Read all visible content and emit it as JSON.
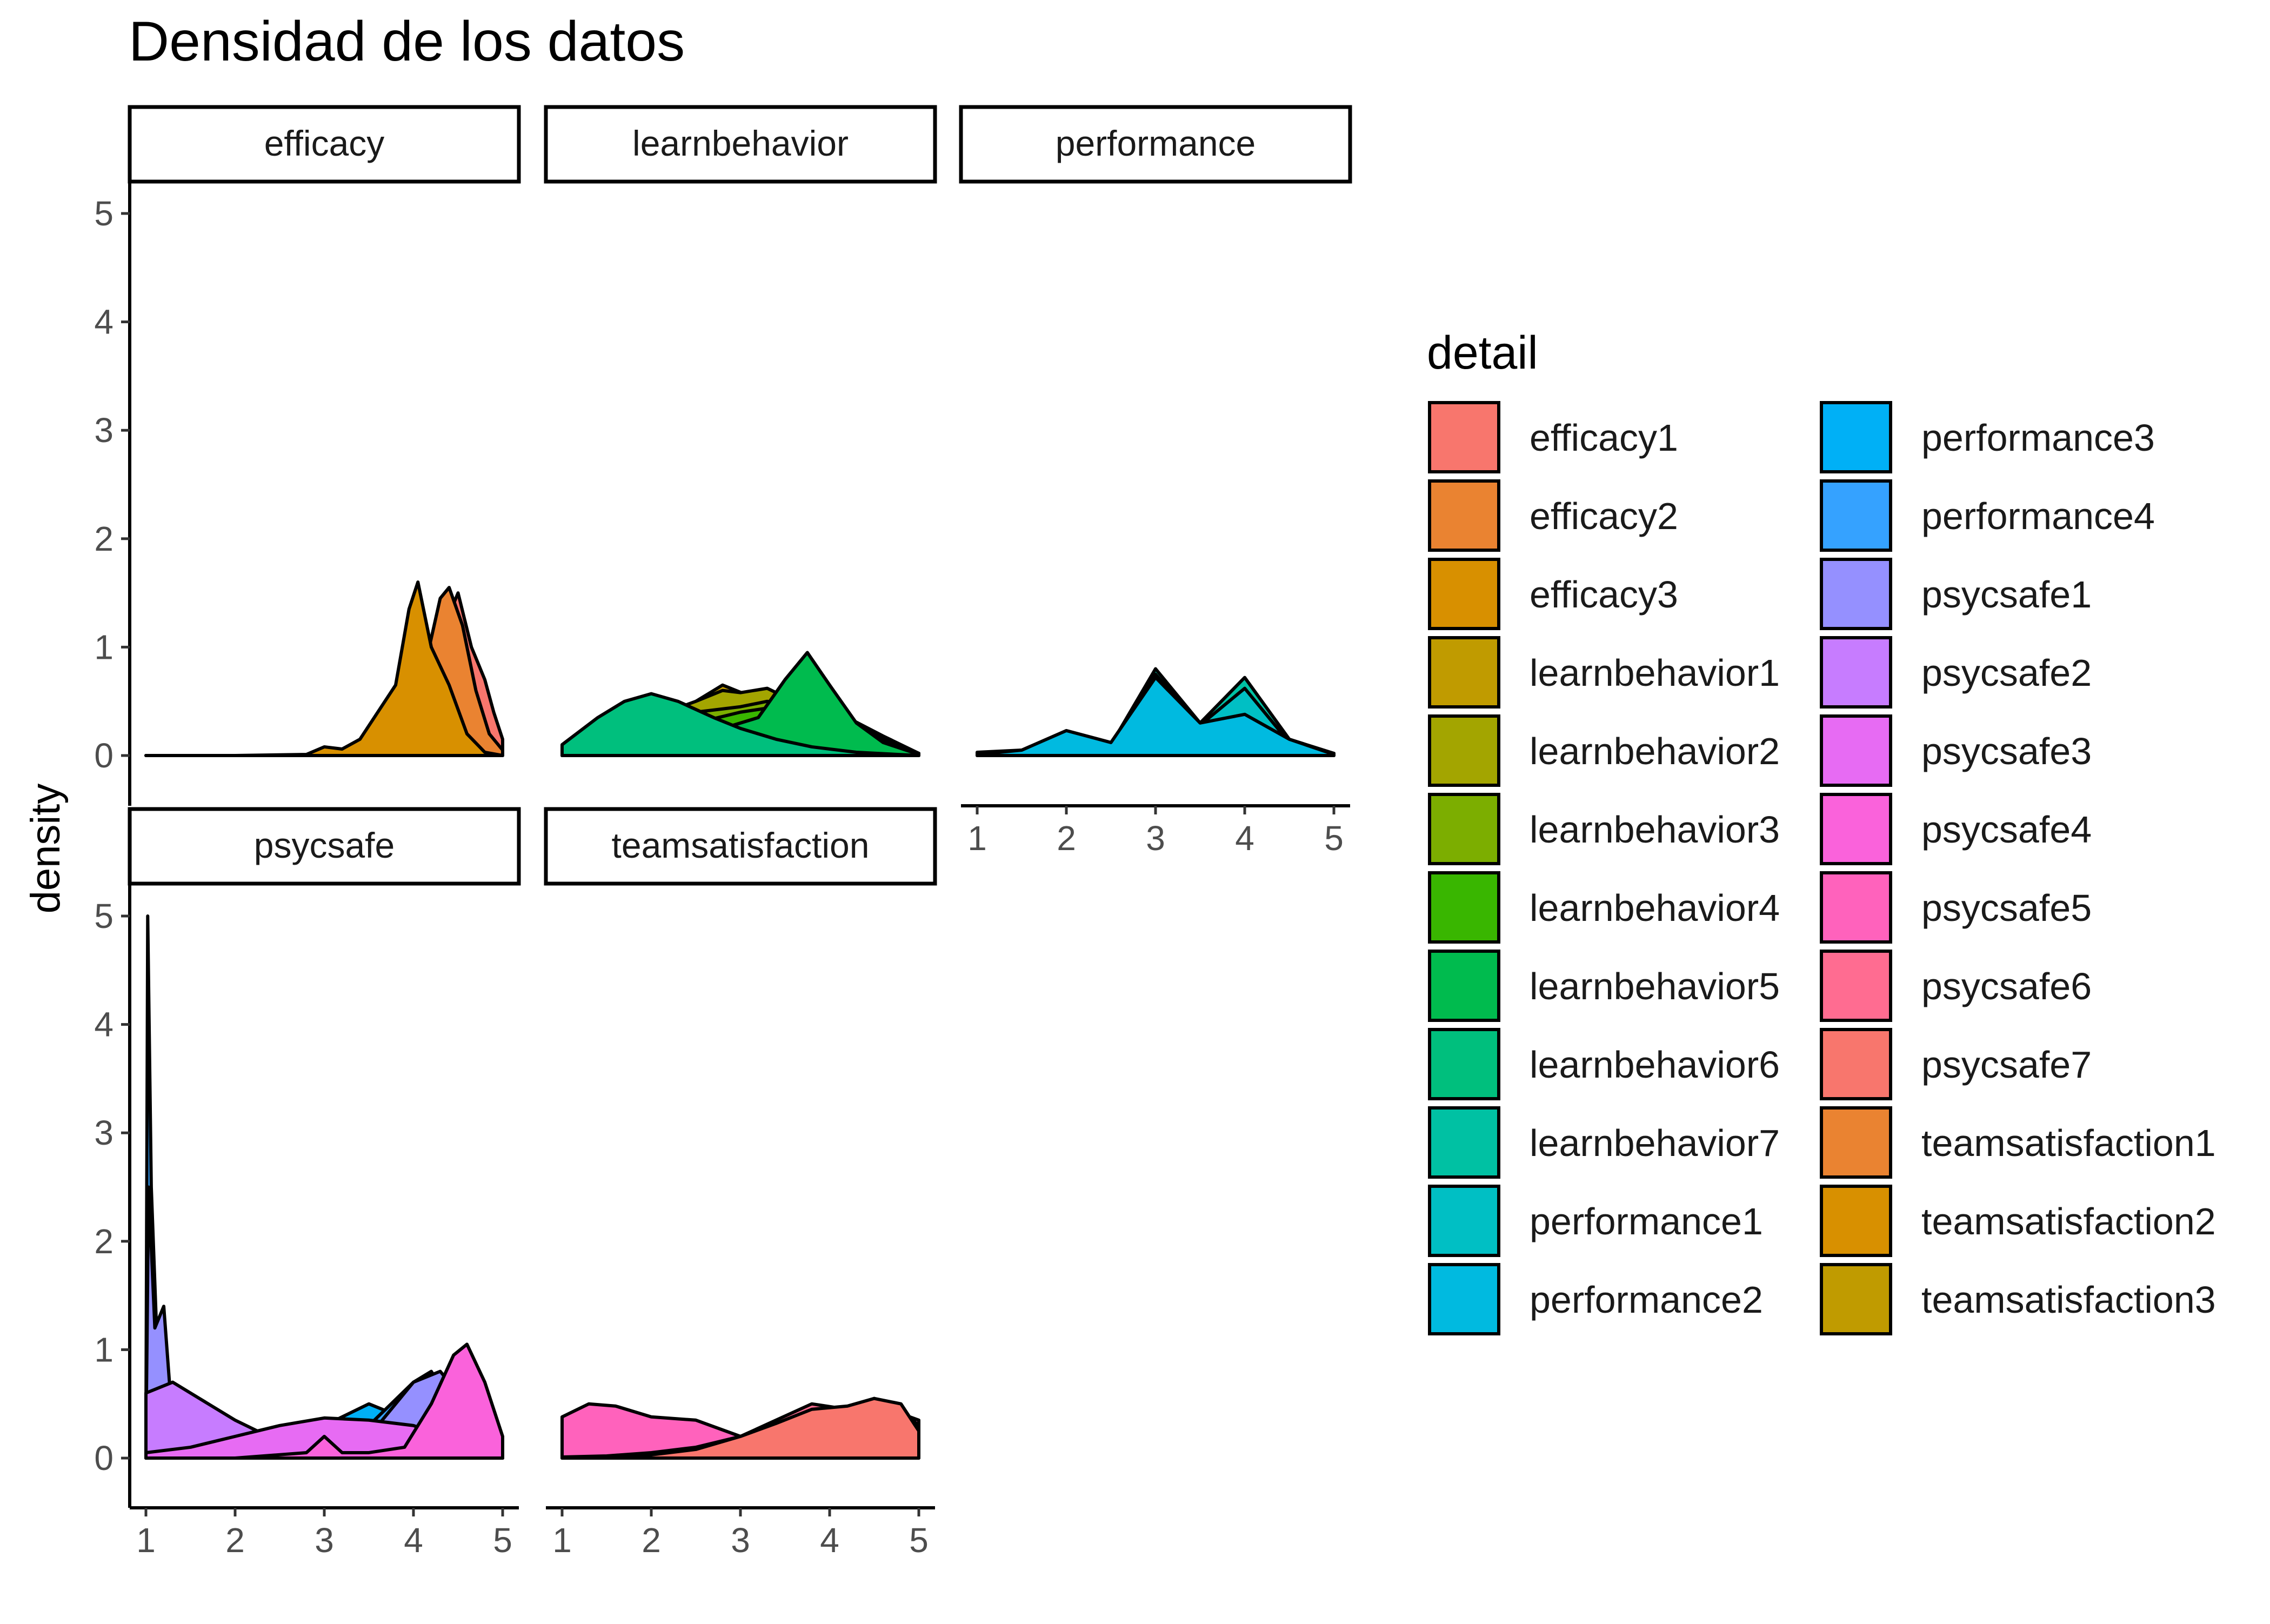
{
  "chart_data": {
    "type": "area",
    "title": "Densidad de los datos",
    "ylabel": "density",
    "xlabel": "",
    "xlim": [
      1,
      5
    ],
    "ylim": [
      0,
      5
    ],
    "x_ticks": [
      1,
      2,
      3,
      4,
      5
    ],
    "y_ticks": [
      0,
      1,
      2,
      3,
      4,
      5
    ],
    "grid": false,
    "legend": {
      "title": "detail",
      "placement": "right",
      "columns": 2,
      "entries": [
        {
          "name": "efficacy1",
          "color": "#F8766D"
        },
        {
          "name": "efficacy2",
          "color": "#EA8331"
        },
        {
          "name": "efficacy3",
          "color": "#D89000"
        },
        {
          "name": "learnbehavior1",
          "color": "#C09B00"
        },
        {
          "name": "learnbehavior2",
          "color": "#A3A500"
        },
        {
          "name": "learnbehavior3",
          "color": "#7CAE00"
        },
        {
          "name": "learnbehavior4",
          "color": "#39B600"
        },
        {
          "name": "learnbehavior5",
          "color": "#00BB4E"
        },
        {
          "name": "learnbehavior6",
          "color": "#00BF7D"
        },
        {
          "name": "learnbehavior7",
          "color": "#00C1A3"
        },
        {
          "name": "performance1",
          "color": "#00BFC4"
        },
        {
          "name": "performance2",
          "color": "#00BAE0"
        },
        {
          "name": "performance3",
          "color": "#00B0F6"
        },
        {
          "name": "performance4",
          "color": "#35A2FF"
        },
        {
          "name": "psycsafe1",
          "color": "#9590FF"
        },
        {
          "name": "psycsafe2",
          "color": "#C77CFF"
        },
        {
          "name": "psycsafe3",
          "color": "#E76BF3"
        },
        {
          "name": "psycsafe4",
          "color": "#FA62DB"
        },
        {
          "name": "psycsafe5",
          "color": "#FF62BC"
        },
        {
          "name": "psycsafe6",
          "color": "#FF6C91"
        },
        {
          "name": "psycsafe7",
          "color": "#F8766D"
        },
        {
          "name": "teamsatisfaction1",
          "color": "#EA8331"
        },
        {
          "name": "teamsatisfaction2",
          "color": "#D89000"
        },
        {
          "name": "teamsatisfaction3",
          "color": "#C09B00"
        }
      ]
    },
    "facets": [
      {
        "label": "efficacy",
        "series": [
          {
            "name": "efficacy1",
            "color": "#F8766D",
            "x": [
              1,
              2,
              2.8,
              3.3,
              3.6,
              3.9,
              4.1,
              4.2,
              4.35,
              4.5,
              4.65,
              4.8,
              4.9,
              5
            ],
            "y": [
              0,
              0,
              0,
              0.02,
              0.05,
              0.15,
              0.55,
              0.85,
              1.2,
              1.5,
              1.0,
              0.7,
              0.4,
              0.15
            ]
          },
          {
            "name": "efficacy2",
            "color": "#EA8331",
            "x": [
              1,
              2,
              2.9,
              3.3,
              3.6,
              3.85,
              4.0,
              4.15,
              4.3,
              4.4,
              4.55,
              4.7,
              4.85,
              5
            ],
            "y": [
              0,
              0,
              0,
              0.05,
              0.12,
              0.3,
              0.5,
              0.9,
              1.45,
              1.55,
              1.2,
              0.6,
              0.2,
              0.05
            ]
          },
          {
            "name": "efficacy3",
            "color": "#D89000",
            "x": [
              1,
              2,
              2.8,
              3.0,
              3.2,
              3.4,
              3.6,
              3.8,
              3.95,
              4.05,
              4.2,
              4.4,
              4.6,
              4.8,
              5
            ],
            "y": [
              0,
              0,
              0.01,
              0.08,
              0.06,
              0.15,
              0.4,
              0.65,
              1.35,
              1.6,
              1.0,
              0.65,
              0.2,
              0.03,
              0
            ]
          }
        ]
      },
      {
        "label": "learnbehavior",
        "series": [
          {
            "name": "learnbehavior1",
            "color": "#C09B00",
            "x": [
              1,
              1.5,
              2,
              2.4,
              2.8,
              3.1,
              3.5,
              4.0,
              4.5,
              5
            ],
            "y": [
              0.05,
              0.2,
              0.35,
              0.45,
              0.65,
              0.55,
              0.55,
              0.4,
              0.2,
              0.02
            ]
          },
          {
            "name": "learnbehavior2",
            "color": "#A3A500",
            "x": [
              1,
              1.5,
              2,
              2.5,
              2.8,
              3.0,
              3.3,
              3.6,
              4.0,
              4.5,
              5
            ],
            "y": [
              0.05,
              0.2,
              0.35,
              0.5,
              0.6,
              0.58,
              0.62,
              0.5,
              0.38,
              0.2,
              0.02
            ]
          },
          {
            "name": "learnbehavior3",
            "color": "#7CAE00",
            "x": [
              1,
              1.5,
              2,
              2.5,
              3.0,
              3.3,
              3.7,
              4.2,
              4.6,
              5
            ],
            "y": [
              0.04,
              0.18,
              0.3,
              0.4,
              0.45,
              0.5,
              0.45,
              0.35,
              0.18,
              0.02
            ]
          },
          {
            "name": "learnbehavior4",
            "color": "#39B600",
            "x": [
              1,
              1.5,
              2,
              2.5,
              3.0,
              3.4,
              3.8,
              4.2,
              4.6,
              5
            ],
            "y": [
              0.03,
              0.15,
              0.25,
              0.3,
              0.4,
              0.45,
              0.5,
              0.35,
              0.15,
              0.02
            ]
          },
          {
            "name": "learnbehavior5",
            "color": "#00BB4E",
            "x": [
              1,
              1.6,
              2.2,
              2.8,
              3.2,
              3.5,
              3.75,
              4.0,
              4.3,
              4.6,
              5
            ],
            "y": [
              0.02,
              0.1,
              0.15,
              0.25,
              0.35,
              0.7,
              0.95,
              0.65,
              0.3,
              0.12,
              0.01
            ]
          },
          {
            "name": "learnbehavior6",
            "color": "#00BF7D",
            "x": [
              1,
              1.4,
              1.7,
              2.0,
              2.3,
              2.7,
              3.0,
              3.4,
              3.8,
              4.3,
              5
            ],
            "y": [
              0.1,
              0.35,
              0.5,
              0.57,
              0.5,
              0.35,
              0.25,
              0.15,
              0.08,
              0.03,
              0
            ]
          }
        ]
      },
      {
        "label": "performance",
        "series": [
          {
            "name": "performance1",
            "color": "#00C1A3",
            "x": [
              1,
              1.5,
              2,
              2.5,
              3,
              3.5,
              4,
              4.5,
              5
            ],
            "y": [
              0.03,
              0.05,
              0.22,
              0.1,
              0.8,
              0.3,
              0.72,
              0.15,
              0.02
            ]
          },
          {
            "name": "performance2",
            "color": "#00BFC4",
            "x": [
              1,
              1.5,
              2,
              2.5,
              3,
              3.5,
              4,
              4.5,
              5
            ],
            "y": [
              0.02,
              0.04,
              0.2,
              0.1,
              0.75,
              0.28,
              0.62,
              0.12,
              0.02
            ]
          },
          {
            "name": "performance3",
            "color": "#00BAE0",
            "x": [
              1,
              1.5,
              2,
              2.5,
              3,
              3.5,
              4,
              4.5,
              5
            ],
            "y": [
              0.01,
              0.05,
              0.23,
              0.12,
              0.72,
              0.3,
              0.38,
              0.15,
              0.01
            ]
          }
        ]
      },
      {
        "label": "psycsafe",
        "series": [
          {
            "name": "psycsafe1",
            "color": "#00B0F6",
            "x": [
              1,
              1.02,
              1.08,
              1.2,
              1.3,
              1.5,
              2.0,
              2.5,
              3.0,
              3.5,
              3.8,
              4.1,
              4.5,
              5
            ],
            "y": [
              0.2,
              3.0,
              1.5,
              0.8,
              0.3,
              0.1,
              0.05,
              0.1,
              0.3,
              0.5,
              0.4,
              0.3,
              0.2,
              0.1
            ]
          },
          {
            "name": "psycsafe2",
            "color": "#35A2FF",
            "x": [
              1,
              1.02,
              1.06,
              1.15,
              1.25,
              1.4,
              2.0,
              2.5,
              3.0,
              3.5,
              4.0,
              4.2,
              4.5,
              5
            ],
            "y": [
              0.3,
              5.0,
              2.5,
              0.5,
              0.2,
              0.1,
              0.05,
              0.1,
              0.2,
              0.3,
              0.7,
              0.8,
              0.4,
              0.1
            ]
          },
          {
            "name": "psycsafe3",
            "color": "#9590FF",
            "x": [
              1,
              1.03,
              1.1,
              1.2,
              1.3,
              1.5,
              2.0,
              2.5,
              3.0,
              3.5,
              4.0,
              4.3,
              4.6,
              5
            ],
            "y": [
              0.1,
              2.5,
              1.2,
              1.4,
              0.3,
              0.1,
              0.05,
              0.05,
              0.1,
              0.2,
              0.7,
              0.8,
              0.5,
              0.1
            ]
          },
          {
            "name": "psycsafe4",
            "color": "#C77CFF",
            "x": [
              1,
              1.3,
              1.6,
              2.0,
              2.5,
              3.0,
              3.5,
              4.0,
              4.5,
              5
            ],
            "y": [
              0.6,
              0.7,
              0.55,
              0.35,
              0.15,
              0.05,
              0.02,
              0.02,
              0.01,
              0
            ]
          },
          {
            "name": "psycsafe5",
            "color": "#E76BF3",
            "x": [
              1,
              1.5,
              2.0,
              2.5,
              3.0,
              3.5,
              4.0,
              4.5,
              5
            ],
            "y": [
              0.05,
              0.1,
              0.2,
              0.3,
              0.37,
              0.35,
              0.3,
              0.15,
              0.05
            ]
          },
          {
            "name": "psycsafe6",
            "color": "#FA62DB",
            "x": [
              1,
              2.0,
              2.8,
              3.0,
              3.2,
              3.5,
              3.9,
              4.2,
              4.45,
              4.6,
              4.8,
              5
            ],
            "y": [
              0,
              0,
              0.05,
              0.2,
              0.05,
              0.05,
              0.1,
              0.5,
              0.95,
              1.05,
              0.7,
              0.2
            ]
          }
        ]
      },
      {
        "label": "teamsatisfaction",
        "series": [
          {
            "name": "teamsatisfaction1",
            "color": "#FF62BC",
            "x": [
              1,
              1.3,
              1.6,
              2.0,
              2.5,
              3.0,
              3.5,
              4.0,
              4.5,
              5
            ],
            "y": [
              0.38,
              0.5,
              0.48,
              0.38,
              0.35,
              0.2,
              0.35,
              0.45,
              0.5,
              0.35
            ]
          },
          {
            "name": "teamsatisfaction2",
            "color": "#FF6C91",
            "x": [
              1,
              1.5,
              2.0,
              2.5,
              3.0,
              3.4,
              3.8,
              4.2,
              4.5,
              4.8,
              5
            ],
            "y": [
              0.01,
              0.02,
              0.05,
              0.1,
              0.2,
              0.35,
              0.5,
              0.45,
              0.55,
              0.45,
              0.3
            ]
          },
          {
            "name": "teamsatisfaction3",
            "color": "#F8766D",
            "x": [
              1,
              1.5,
              2.0,
              2.5,
              3.0,
              3.4,
              3.8,
              4.2,
              4.5,
              4.8,
              5
            ],
            "y": [
              0,
              0.01,
              0.03,
              0.08,
              0.2,
              0.32,
              0.45,
              0.48,
              0.55,
              0.5,
              0.25
            ]
          }
        ]
      }
    ]
  }
}
